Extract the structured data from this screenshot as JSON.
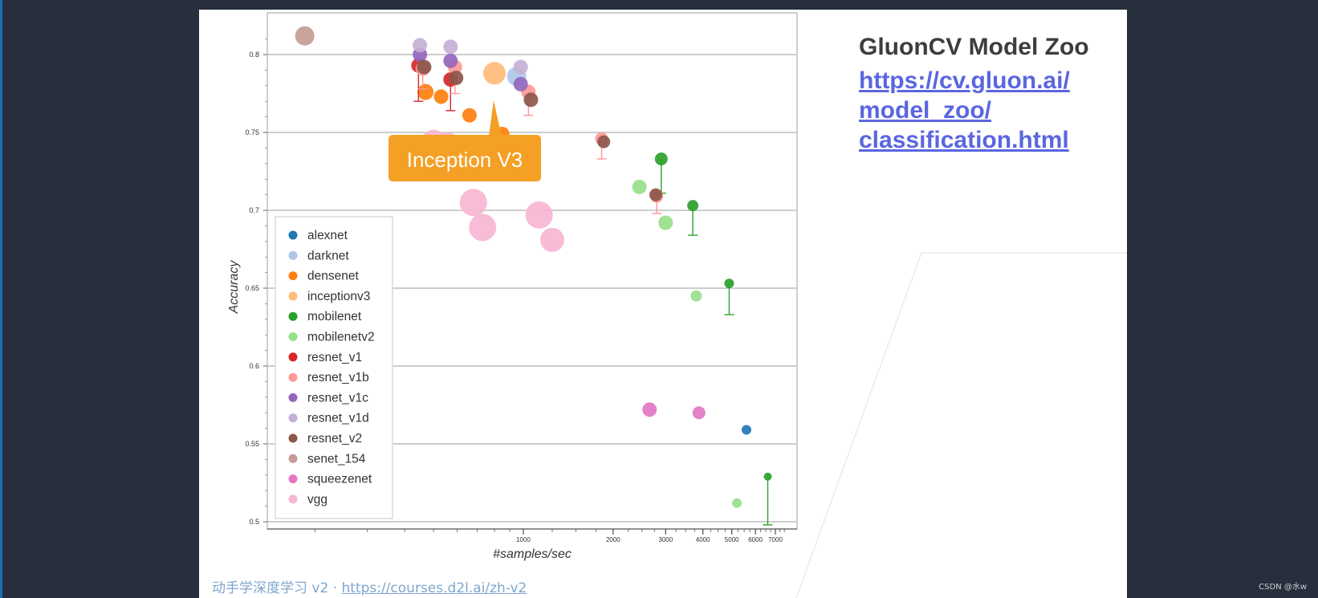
{
  "slide": {
    "title": "GluonCV Model Zoo",
    "link_lines": [
      "https://cv.gluon.ai/",
      "model_zoo/",
      "classification.html"
    ],
    "footer_text": "动手学深度学习 v2 · ",
    "footer_url": "https://courses.d2l.ai/zh-v2"
  },
  "watermark": "CSDN @水w",
  "chart_data": {
    "type": "scatter",
    "title": "",
    "xlabel": "#samples/sec",
    "ylabel": "Accuracy",
    "xscale": "log",
    "xlim": [
      160,
      7600
    ],
    "ylim": [
      0.495,
      0.825
    ],
    "yticks": [
      0.5,
      0.55,
      0.6,
      0.65,
      0.7,
      0.75,
      0.8
    ],
    "ytick_labels": [
      "0.5",
      "0.55",
      "0.6",
      "0.65",
      "0.7",
      "0.75",
      "0.8"
    ],
    "xticks": [
      1000,
      2000,
      3000,
      4000,
      5000,
      6000,
      7000
    ],
    "xtick_labels": [
      "1000",
      "2000",
      "3000",
      "4000",
      "5000",
      "6000",
      "7000"
    ],
    "grid": "horizontal",
    "legend_position": "bottom-left",
    "annotation": {
      "text": "Inception V3",
      "x": 800,
      "y": 0.785,
      "color": "#f4a025"
    },
    "series": [
      {
        "name": "alexnet",
        "color": "#1f77b4",
        "points": [
          {
            "x": 5600,
            "y": 0.559,
            "size": 6
          }
        ]
      },
      {
        "name": "darknet",
        "color": "#aec7e8",
        "points": [
          {
            "x": 950,
            "y": 0.786,
            "size": 12
          }
        ]
      },
      {
        "name": "densenet",
        "color": "#ff7f0e",
        "points": [
          {
            "x": 470,
            "y": 0.776,
            "size": 10
          },
          {
            "x": 530,
            "y": 0.773,
            "size": 9
          },
          {
            "x": 660,
            "y": 0.761,
            "size": 9
          },
          {
            "x": 850,
            "y": 0.749,
            "size": 9
          }
        ]
      },
      {
        "name": "inceptionv3",
        "color": "#ffbb78",
        "points": [
          {
            "x": 800,
            "y": 0.788,
            "size": 14
          }
        ]
      },
      {
        "name": "mobilenet",
        "color": "#2ca02c",
        "points": [
          {
            "x": 2900,
            "y": 0.733,
            "size": 8,
            "err": 0.022
          },
          {
            "x": 3700,
            "y": 0.703,
            "size": 7,
            "err": 0.019
          },
          {
            "x": 4900,
            "y": 0.653,
            "size": 6,
            "err": 0.02
          },
          {
            "x": 6600,
            "y": 0.529,
            "size": 5,
            "err": 0.031
          }
        ]
      },
      {
        "name": "mobilenetv2",
        "color": "#98df8a",
        "points": [
          {
            "x": 2450,
            "y": 0.715,
            "size": 9
          },
          {
            "x": 3000,
            "y": 0.692,
            "size": 9
          },
          {
            "x": 3800,
            "y": 0.645,
            "size": 7
          },
          {
            "x": 5200,
            "y": 0.512,
            "size": 6
          }
        ]
      },
      {
        "name": "resnet_v1",
        "color": "#d62728",
        "points": [
          {
            "x": 445,
            "y": 0.793,
            "size": 9,
            "err": 0.023
          },
          {
            "x": 570,
            "y": 0.784,
            "size": 9,
            "err": 0.02
          }
        ]
      },
      {
        "name": "resnet_v1b",
        "color": "#ff9896",
        "points": [
          {
            "x": 460,
            "y": 0.791,
            "size": 9,
            "err": 0.013
          },
          {
            "x": 590,
            "y": 0.792,
            "size": 9,
            "err": 0.017
          },
          {
            "x": 1040,
            "y": 0.776,
            "size": 9,
            "err": 0.015
          },
          {
            "x": 1830,
            "y": 0.746,
            "size": 8,
            "err": 0.013
          },
          {
            "x": 2800,
            "y": 0.709,
            "size": 8,
            "err": 0.011
          }
        ]
      },
      {
        "name": "resnet_v1c",
        "color": "#9467bd",
        "points": [
          {
            "x": 450,
            "y": 0.8,
            "size": 9
          },
          {
            "x": 570,
            "y": 0.796,
            "size": 9
          },
          {
            "x": 980,
            "y": 0.781,
            "size": 9
          }
        ]
      },
      {
        "name": "resnet_v1d",
        "color": "#c5b0d5",
        "points": [
          {
            "x": 450,
            "y": 0.806,
            "size": 9
          },
          {
            "x": 570,
            "y": 0.805,
            "size": 9
          },
          {
            "x": 980,
            "y": 0.792,
            "size": 9
          }
        ]
      },
      {
        "name": "resnet_v2",
        "color": "#8c564b",
        "points": [
          {
            "x": 465,
            "y": 0.792,
            "size": 9
          },
          {
            "x": 595,
            "y": 0.785,
            "size": 9
          },
          {
            "x": 1060,
            "y": 0.771,
            "size": 9
          },
          {
            "x": 1860,
            "y": 0.744,
            "size": 8
          },
          {
            "x": 2780,
            "y": 0.71,
            "size": 8
          }
        ]
      },
      {
        "name": "senet_154",
        "color": "#c49c94",
        "points": [
          {
            "x": 185,
            "y": 0.812,
            "size": 12
          }
        ]
      },
      {
        "name": "squeezenet",
        "color": "#e377c2",
        "points": [
          {
            "x": 2650,
            "y": 0.572,
            "size": 9
          },
          {
            "x": 3880,
            "y": 0.57,
            "size": 8
          }
        ]
      },
      {
        "name": "vgg",
        "color": "#f7b6d2",
        "points": [
          {
            "x": 500,
            "y": 0.744,
            "size": 15
          },
          {
            "x": 555,
            "y": 0.743,
            "size": 14
          },
          {
            "x": 680,
            "y": 0.705,
            "size": 17
          },
          {
            "x": 730,
            "y": 0.689,
            "size": 17
          },
          {
            "x": 1130,
            "y": 0.697,
            "size": 17
          },
          {
            "x": 1250,
            "y": 0.681,
            "size": 15
          }
        ]
      }
    ]
  }
}
